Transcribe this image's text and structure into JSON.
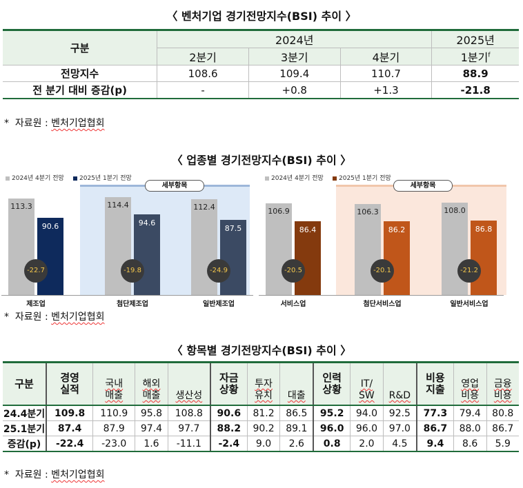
{
  "title1": "〈 벤처기업 경기전망지수(BSI) 추이 〉",
  "table1": {
    "col_group": "구분",
    "year_a": "2024년",
    "year_b": "2025년",
    "quarters": [
      "2분기",
      "3분기",
      "4분기",
      "1분기"
    ],
    "q_superscript": "f",
    "rows": [
      {
        "label": "전망지수",
        "values": [
          "108.6",
          "109.4",
          "110.7",
          "88.9"
        ]
      },
      {
        "label": "전 분기 대비 증감(p)",
        "values": [
          "-",
          "+0.8",
          "+1.3",
          "-21.8"
        ]
      }
    ]
  },
  "note1": {
    "star": "*",
    "text": "자료원 : ",
    "src": "벤처기업협회"
  },
  "title2": "〈 업종별 경기전망지수(BSI) 추이 〉",
  "chart_data": [
    {
      "type": "bar",
      "title": "",
      "legend": [
        "2024년 4분기 전망",
        "2025년 1분기 전망"
      ],
      "subgroup_label": "세부항목",
      "categories": [
        "제조업",
        "첨단제조업",
        "일반제조업"
      ],
      "series": [
        {
          "name": "2024년 4분기 전망",
          "values": [
            113.3,
            114.4,
            112.4
          ]
        },
        {
          "name": "2025년 1분기 전망",
          "values": [
            90.6,
            94.6,
            87.5
          ]
        }
      ],
      "changes": [
        "-22.7",
        "-19.8",
        "-24.9"
      ],
      "labels_a": [
        "113.3",
        "114.4",
        "112.4"
      ],
      "labels_b": [
        "90.6",
        "94.6",
        "87.5"
      ],
      "colors": {
        "q4": "#bfbfbf",
        "q1": [
          "#0e2a5c",
          "#3b4a63",
          "#3b4a63"
        ],
        "panel": "#dde9f7",
        "panel_top": "#9db7d9"
      }
    },
    {
      "type": "bar",
      "title": "",
      "legend": [
        "2024년 4분기 전망",
        "2025년 1분기 전망"
      ],
      "subgroup_label": "세부항목",
      "categories": [
        "서비스업",
        "첨단서비스업",
        "일반서비스업"
      ],
      "series": [
        {
          "name": "2024년 4분기 전망",
          "values": [
            106.9,
            106.3,
            108.0
          ]
        },
        {
          "name": "2025년 1분기 전망",
          "values": [
            86.4,
            86.2,
            86.8
          ]
        }
      ],
      "changes": [
        "-20.5",
        "-20.1",
        "-21.2"
      ],
      "labels_a": [
        "106.9",
        "106.3",
        "108.0"
      ],
      "labels_b": [
        "86.4",
        "86.2",
        "86.8"
      ],
      "colors": {
        "q4": "#bfbfbf",
        "q1": [
          "#843a0e",
          "#c0561a",
          "#c0561a"
        ],
        "panel": "#fbe7dc",
        "panel_top": "#f1c6ab"
      }
    }
  ],
  "note2": {
    "star": "*",
    "text": "자료원 : ",
    "src": "벤처기업협회"
  },
  "title3": "〈 항목별 경기전망지수(BSI) 추이 〉",
  "table3": {
    "corner": "구분",
    "headers": [
      {
        "text": "경영\n실적",
        "major": true
      },
      {
        "text": "국내\n매출",
        "major": false
      },
      {
        "text": "해외\n매출",
        "major": false
      },
      {
        "text": "생산성",
        "major": false
      },
      {
        "text": "자금\n상황",
        "major": true
      },
      {
        "text": "투자\n유치",
        "major": false
      },
      {
        "text": "대출",
        "major": false
      },
      {
        "text": "인력\n상황",
        "major": true
      },
      {
        "text": "IT/\nSW",
        "major": false
      },
      {
        "text": "R&D",
        "major": false
      },
      {
        "text": "비용\n지출",
        "major": true
      },
      {
        "text": "영업\n비용",
        "major": false
      },
      {
        "text": "금융\n비용",
        "major": false
      }
    ],
    "rows": [
      {
        "label": "24.4분기",
        "values": [
          "109.8",
          "110.9",
          "95.8",
          "108.8",
          "90.6",
          "81.2",
          "86.5",
          "95.2",
          "94.0",
          "92.5",
          "77.3",
          "79.4",
          "80.8"
        ]
      },
      {
        "label": "25.1분기",
        "values": [
          "87.4",
          "87.9",
          "97.4",
          "97.7",
          "88.2",
          "90.2",
          "89.1",
          "96.0",
          "96.0",
          "97.0",
          "86.7",
          "88.0",
          "86.7"
        ]
      },
      {
        "label": "증감(p)",
        "values": [
          "-22.4",
          "-23.0",
          "1.6",
          "-11.1",
          "-2.4",
          "9.0",
          "2.6",
          "0.8",
          "2.0",
          "4.5",
          "9.4",
          "8.6",
          "5.9"
        ]
      }
    ]
  },
  "note3": {
    "star": "*",
    "text": "자료원 : ",
    "src": "벤처기업협회"
  }
}
